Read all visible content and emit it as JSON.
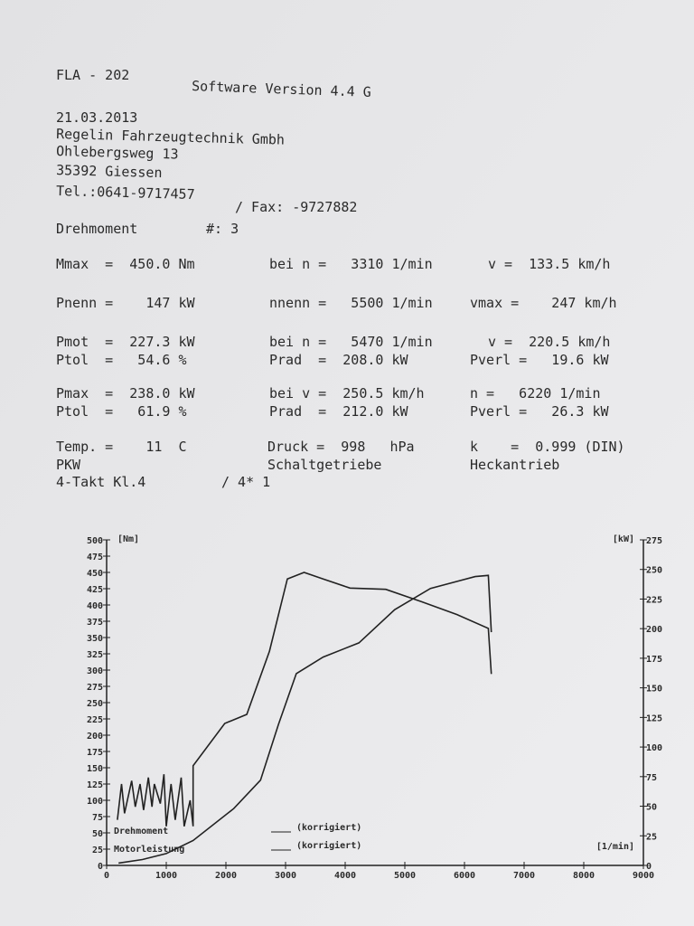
{
  "header": {
    "code": "FLA - 202",
    "software": "Software Version 4.4 G",
    "date": "21.03.2013",
    "company": "Regelin Fahrzeugtechnik Gmbh",
    "street": "Ohlebergsweg 13",
    "city": "35392 Giessen",
    "phone": "Tel.:0641-9717457",
    "fax": "/ Fax: -9727882"
  },
  "rows": [
    [
      "Drehmoment",
      "#: 3"
    ],
    [
      "Mmax  =  450.0 Nm",
      "bei n =   3310 1/min",
      "v =  133.5 km/h"
    ],
    [
      "Pnenn =    147 kW",
      "nnenn =   5500 1/min",
      "vmax =    247 km/h"
    ],
    [
      "Pmot  =  227.3 kW",
      "bei n =   5470 1/min",
      "v =  220.5 km/h"
    ],
    [
      "Ptol  =   54.6 %",
      "Prad  =  208.0 kW",
      "Pverl =   19.6 kW"
    ],
    [
      "Pmax  =  238.0 kW",
      "bei v =  250.5 km/h",
      "n =   6220 1/min"
    ],
    [
      "Ptol  =   61.9 %",
      "Prad  =  212.0 kW",
      "Pverl =   26.3 kW"
    ],
    [
      "Temp. =    11  C",
      "Druck =  998   hPa",
      "k    =  0.999 (DIN)"
    ],
    [
      "PKW",
      "Schaltgetriebe",
      "Heckantrieb"
    ],
    [
      "4-Takt Kl.4",
      "/ 4* 1"
    ]
  ],
  "chart_data": {
    "type": "line",
    "y_label": "[Nm]",
    "y2_label": "[kW]",
    "x_label": "[1/min]",
    "legend_notes": [
      "(korrigiert)",
      "(korrigiert)"
    ],
    "xlim": [
      0,
      9000
    ],
    "xticks": [
      0,
      1000,
      2000,
      3000,
      4000,
      5000,
      6000,
      7000,
      8000,
      9000
    ],
    "ylim": [
      0,
      500
    ],
    "yticks": [
      0,
      25,
      50,
      75,
      100,
      125,
      150,
      175,
      200,
      225,
      250,
      275,
      300,
      325,
      350,
      375,
      400,
      425,
      450,
      475,
      500
    ],
    "y2lim": [
      0,
      275
    ],
    "y2ticks": [
      0,
      25,
      50,
      75,
      100,
      125,
      150,
      175,
      200,
      225,
      250,
      275
    ],
    "series": [
      {
        "name": "Drehmoment",
        "color": "#222222",
        "x": [
          180,
          250,
          300,
          420,
          480,
          560,
          620,
          700,
          760,
          800,
          900,
          960,
          1000,
          1080,
          1150,
          1250,
          1300,
          1400,
          1450,
          1450,
          1980,
          2350,
          2730,
          3030,
          3310,
          3630,
          4080,
          4680,
          5280,
          5880,
          6400,
          6450
        ],
        "values": [
          70,
          125,
          80,
          130,
          90,
          125,
          85,
          135,
          90,
          125,
          95,
          140,
          60,
          125,
          70,
          135,
          60,
          100,
          60,
          153,
          218,
          232,
          329,
          440,
          450,
          440,
          426,
          424,
          405,
          385,
          364,
          294
        ]
      },
      {
        "name": "Motorleistung",
        "color": "#222222",
        "x": [
          200,
          600,
          1000,
          1450,
          2130,
          2580,
          2880,
          3180,
          3630,
          4230,
          4830,
          5430,
          6180,
          6400,
          6450
        ],
        "values": [
          2,
          5,
          10,
          21,
          48,
          72,
          119,
          162,
          176,
          188,
          216,
          234,
          244,
          245,
          197
        ],
        "axis": "y2"
      }
    ]
  }
}
